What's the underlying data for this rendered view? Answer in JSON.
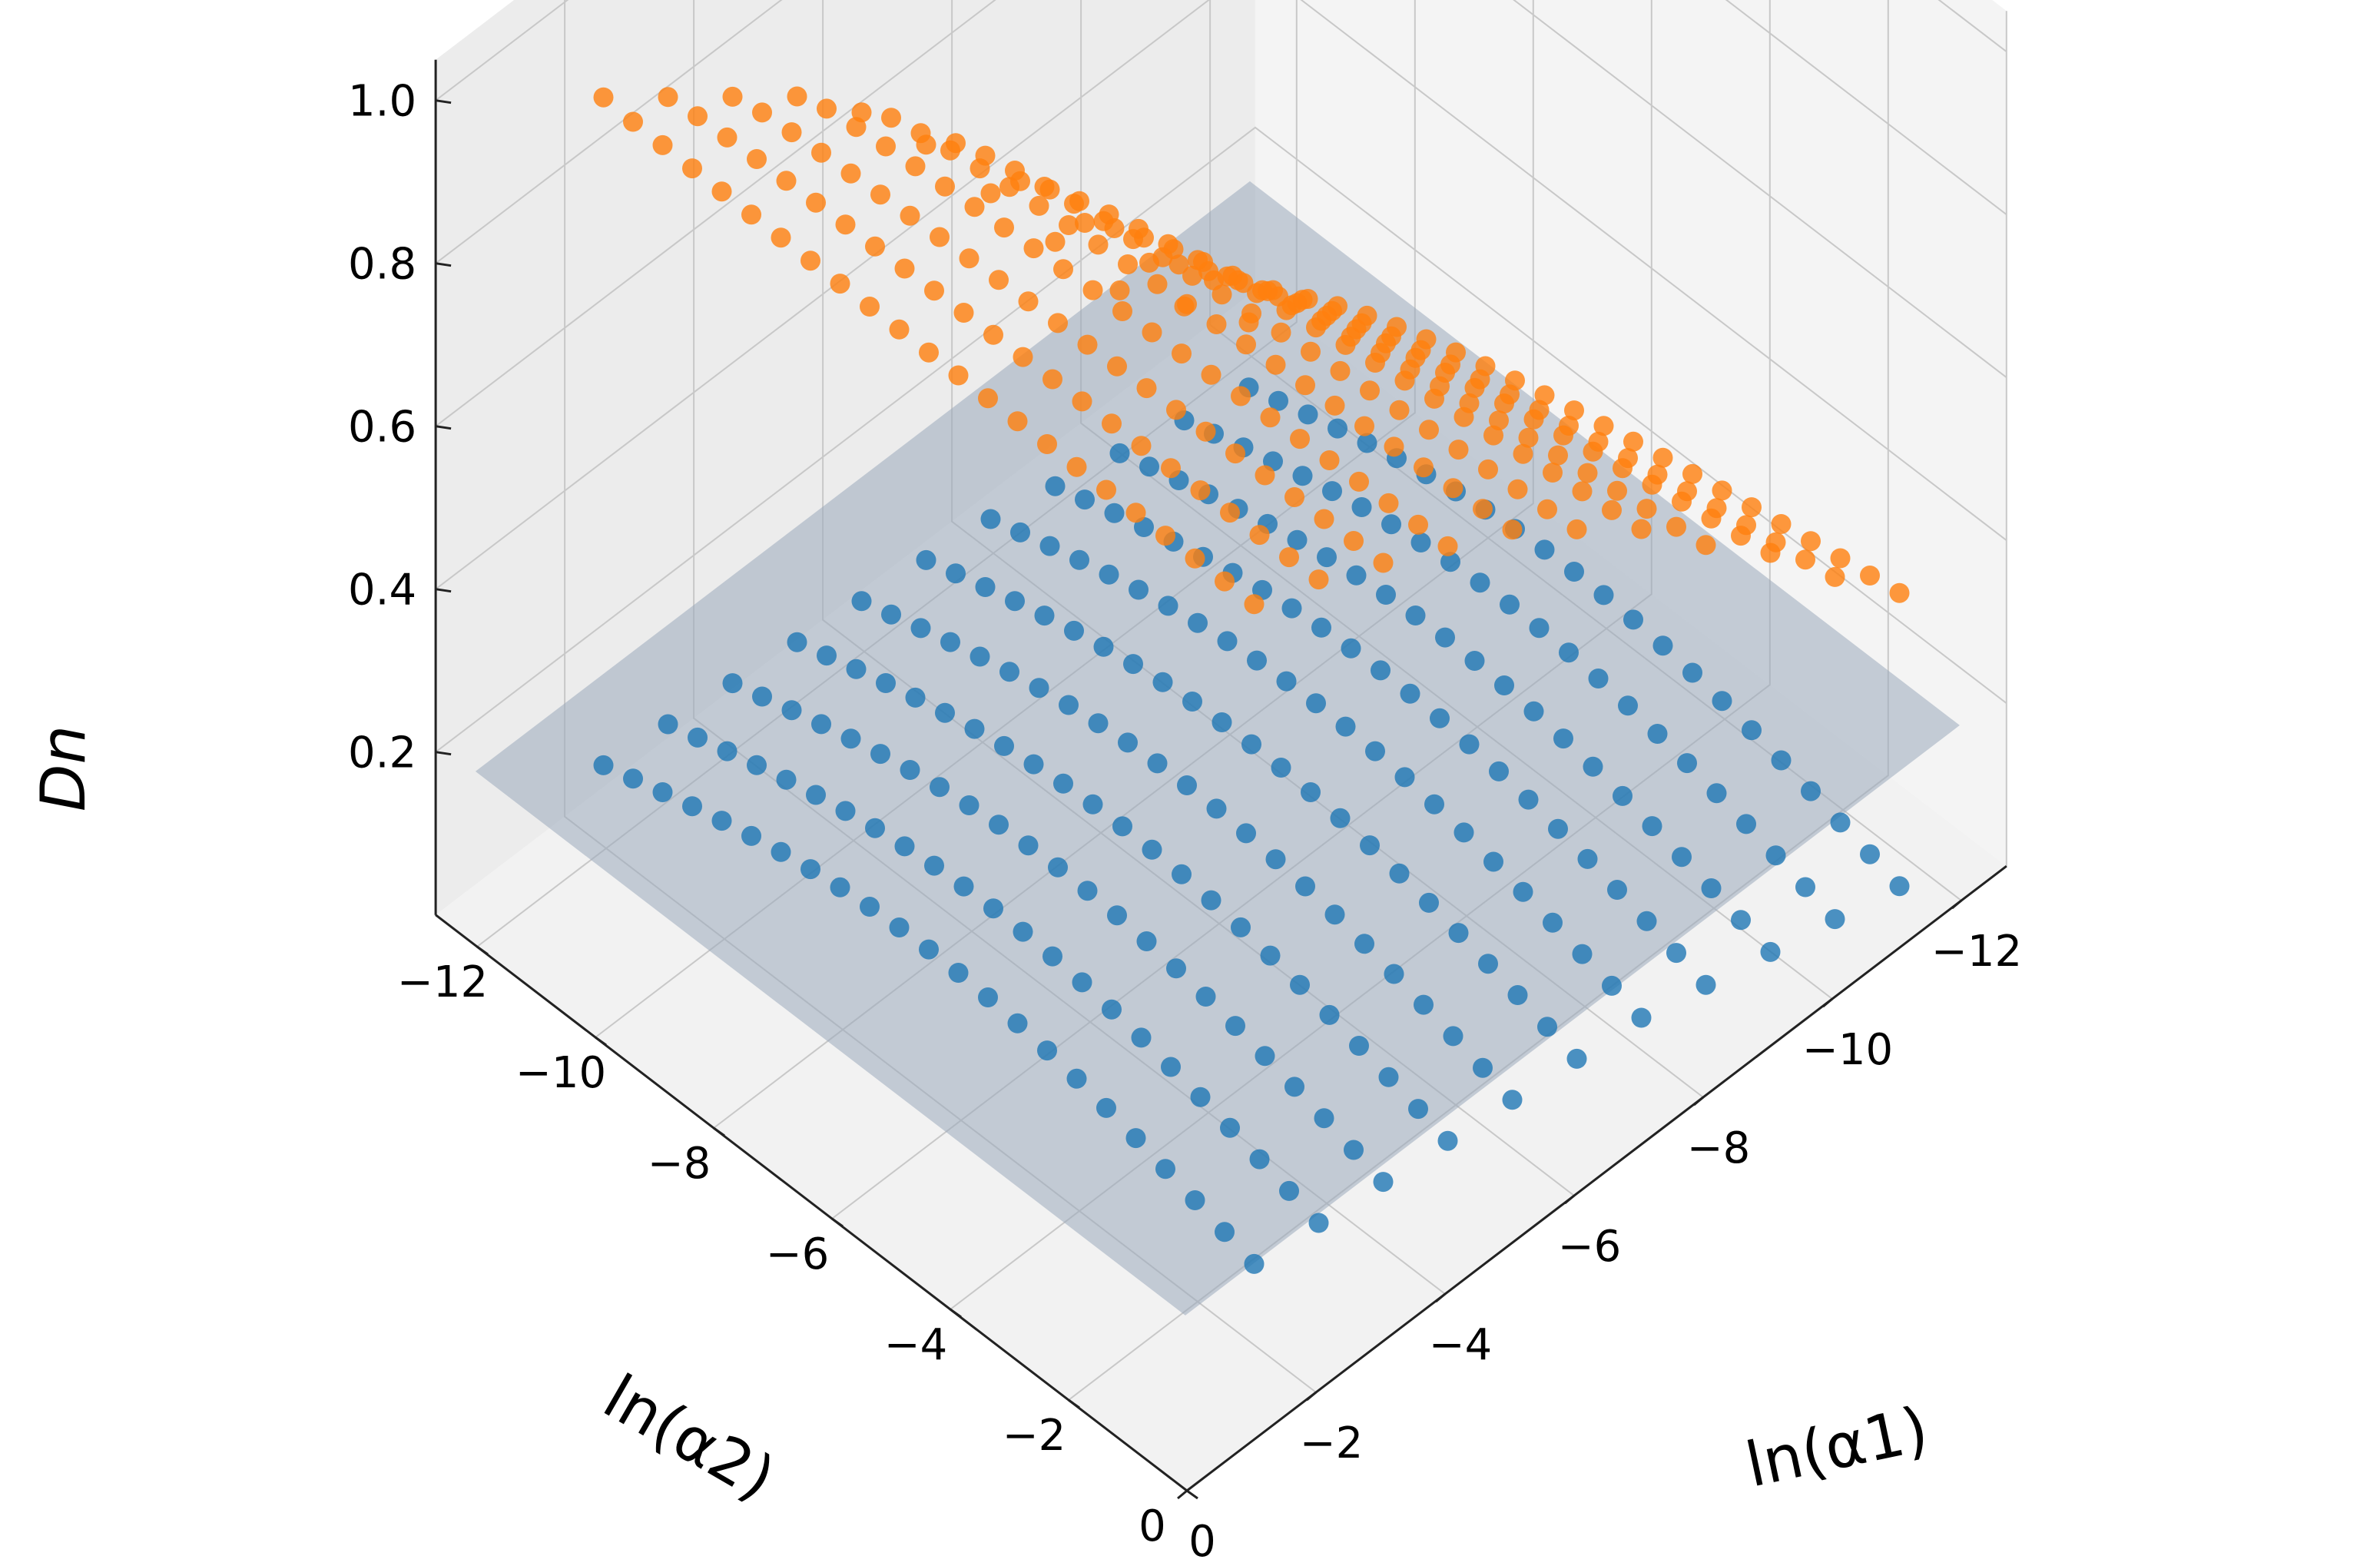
{
  "chart_data": {
    "type": "scatter3d",
    "axes": {
      "x": {
        "label": "ln(α1)",
        "ticks": [
          "0",
          "−2",
          "−4",
          "−6",
          "−8",
          "−10",
          "−12"
        ],
        "tick_values": [
          0,
          -2,
          -4,
          -6,
          -8,
          -10,
          -12
        ],
        "range": [
          0,
          -12.7
        ]
      },
      "y": {
        "label": "ln(α2)",
        "ticks": [
          "0",
          "−2",
          "−4",
          "−6",
          "−8",
          "−10",
          "−12"
        ],
        "tick_values": [
          0,
          -2,
          -4,
          -6,
          -8,
          -10,
          -12
        ],
        "range": [
          0,
          -12.7
        ]
      },
      "z": {
        "label": "Dn",
        "ticks": [
          "0.2",
          "0.4",
          "0.6",
          "0.8",
          "1.0"
        ],
        "tick_values": [
          0.2,
          0.4,
          0.6,
          0.8,
          1.0
        ],
        "range": [
          0.0,
          1.05
        ]
      }
    },
    "grid": true,
    "plane": {
      "z": 0.25,
      "x_range": [
        0.3,
        -11.7
      ],
      "y_range": [
        0.3,
        -11.7
      ],
      "color": "#9aaabb",
      "opacity": 0.55
    },
    "series": [
      {
        "color": "#ff7f0e",
        "alpha_levels": [
          -11.5,
          -10.5,
          -9.5,
          -8.5,
          -7.5,
          -6.5,
          -5.5,
          -4.5,
          -3.5,
          -2.5,
          -1.5
        ],
        "y_start": -11.5,
        "y_end": -0.5,
        "y_step": 0.5,
        "dn_at_y_start": [
          0.1,
          0.18,
          0.26,
          0.38,
          0.5,
          0.62,
          0.72,
          0.8,
          0.86,
          0.92,
          0.98
        ],
        "dn_at_y_end": [
          0.38,
          0.46,
          0.55,
          0.62,
          0.7,
          0.76,
          0.82,
          0.86,
          0.9,
          0.94,
          0.97
        ]
      },
      {
        "color": "#1f77b4",
        "alpha_levels": [
          -11.5,
          -10.5,
          -9.5,
          -8.5,
          -7.5,
          -6.5,
          -5.5,
          -4.5,
          -3.5,
          -2.5,
          -1.5
        ],
        "y_start": -11.5,
        "y_end": -0.5,
        "y_step": 0.5,
        "dn_base": [
          0.02,
          0.04,
          0.06,
          0.08,
          0.1,
          0.11,
          0.12,
          0.13,
          0.14,
          0.15,
          0.16
        ]
      }
    ]
  }
}
